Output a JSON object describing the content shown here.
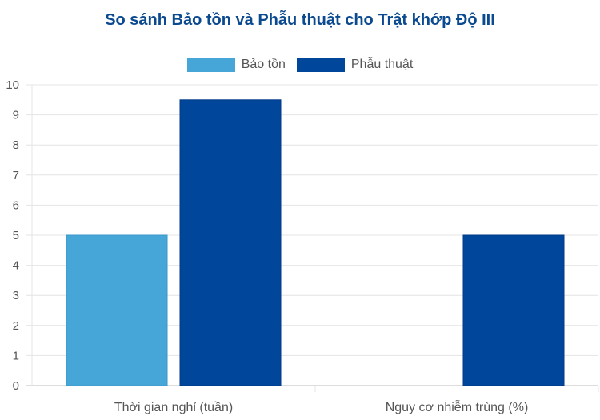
{
  "chart_data": {
    "type": "bar",
    "title": "So sánh Bảo tồn và Phẫu thuật cho Trật khớp Độ III",
    "categories": [
      "Thời gian nghỉ (tuần)",
      "Nguy cơ nhiễm trùng (%)"
    ],
    "series": [
      {
        "name": "Bảo tồn",
        "values": [
          5,
          0
        ],
        "color": "#46a6d8"
      },
      {
        "name": "Phẫu thuật",
        "values": [
          9.5,
          5
        ],
        "color": "#00469b"
      }
    ],
    "ylim": [
      0,
      10
    ],
    "yticks": [
      0,
      1,
      2,
      3,
      4,
      5,
      6,
      7,
      8,
      9,
      10
    ],
    "grid": true,
    "legend_position": "top"
  }
}
